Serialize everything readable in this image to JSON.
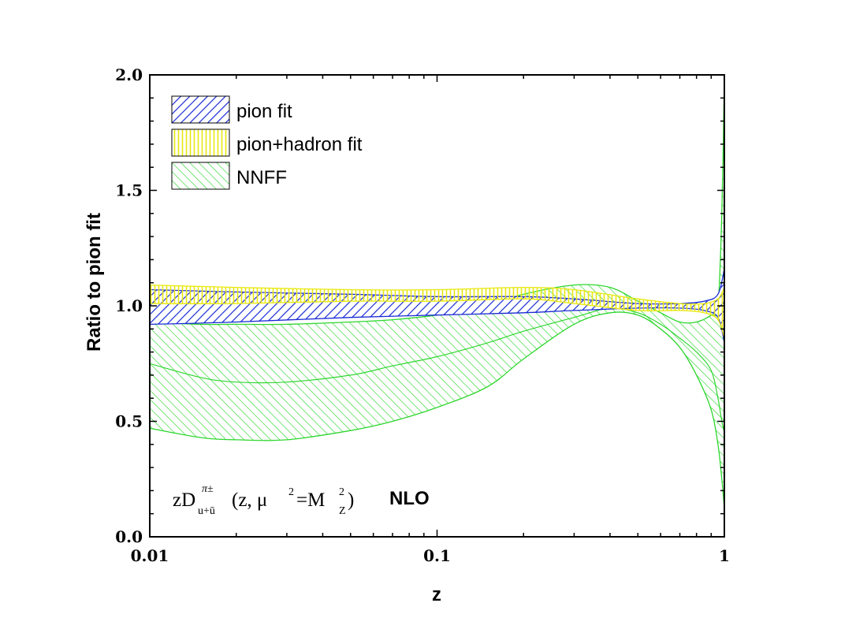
{
  "chart_data": {
    "type": "area",
    "xscale": "log",
    "xlim": [
      0.01,
      1
    ],
    "ylim": [
      0.0,
      2.0
    ],
    "xlabel": "z",
    "ylabel": "Ratio to pion fit",
    "x_tick_labels": [
      "0.01",
      "0.1",
      "1"
    ],
    "y_tick_labels": [
      "0.0",
      "0.5",
      "1.0",
      "1.5",
      "2.0"
    ],
    "legend_position": "top-left",
    "annotation": {
      "main": "zD",
      "superscript": "π±",
      "subscript": "u+ū",
      "args_open": "(z, μ",
      "args_sup": "2",
      "args_eq": "=M",
      "args_msup": "2",
      "args_msub": "Z",
      "args_close": ")",
      "order": "NLO"
    },
    "series": [
      {
        "name": "pion fit",
        "color": "#1a2bd6",
        "pattern": "diagonal-up",
        "x": [
          0.01,
          0.02,
          0.05,
          0.1,
          0.2,
          0.3,
          0.5,
          0.7,
          0.85,
          0.95,
          1.0
        ],
        "upper": [
          1.07,
          1.06,
          1.05,
          1.04,
          1.04,
          1.03,
          1.01,
          1.01,
          1.02,
          1.05,
          1.16
        ],
        "lower": [
          0.92,
          0.93,
          0.95,
          0.96,
          0.97,
          0.98,
          0.99,
          0.99,
          0.98,
          0.95,
          0.84
        ]
      },
      {
        "name": "pion+hadron fit",
        "color": "#e8e810",
        "pattern": "vertical",
        "x": [
          0.01,
          0.02,
          0.05,
          0.1,
          0.2,
          0.3,
          0.5,
          0.7,
          0.85,
          0.95,
          1.0
        ],
        "upper": [
          1.09,
          1.08,
          1.07,
          1.07,
          1.08,
          1.07,
          1.03,
          1.01,
          1.01,
          1.03,
          1.08
        ],
        "lower": [
          1.01,
          1.01,
          1.02,
          1.02,
          1.03,
          1.01,
          0.98,
          0.98,
          0.97,
          0.94,
          0.86
        ]
      },
      {
        "name": "NNFF",
        "color": "#2ed62e",
        "pattern": "diagonal-down",
        "x": [
          0.01,
          0.015,
          0.02,
          0.03,
          0.05,
          0.07,
          0.1,
          0.15,
          0.2,
          0.3,
          0.4,
          0.5,
          0.6,
          0.7,
          0.8,
          0.9,
          0.95,
          0.98,
          1.0
        ],
        "upper": [
          0.93,
          0.92,
          0.92,
          0.92,
          0.93,
          0.94,
          0.96,
          1.0,
          1.05,
          1.09,
          1.08,
          1.02,
          0.97,
          0.93,
          0.93,
          0.96,
          1.0,
          1.4,
          2.0
        ],
        "central": [
          0.75,
          0.69,
          0.67,
          0.67,
          0.7,
          0.74,
          0.78,
          0.84,
          0.89,
          0.95,
          0.99,
          0.97,
          0.92,
          0.86,
          0.8,
          0.72,
          0.6,
          0.5,
          0.45
        ],
        "lower": [
          0.47,
          0.43,
          0.42,
          0.42,
          0.46,
          0.5,
          0.56,
          0.65,
          0.77,
          0.92,
          0.97,
          0.96,
          0.9,
          0.82,
          0.7,
          0.55,
          0.4,
          0.25,
          0.12
        ]
      }
    ]
  }
}
